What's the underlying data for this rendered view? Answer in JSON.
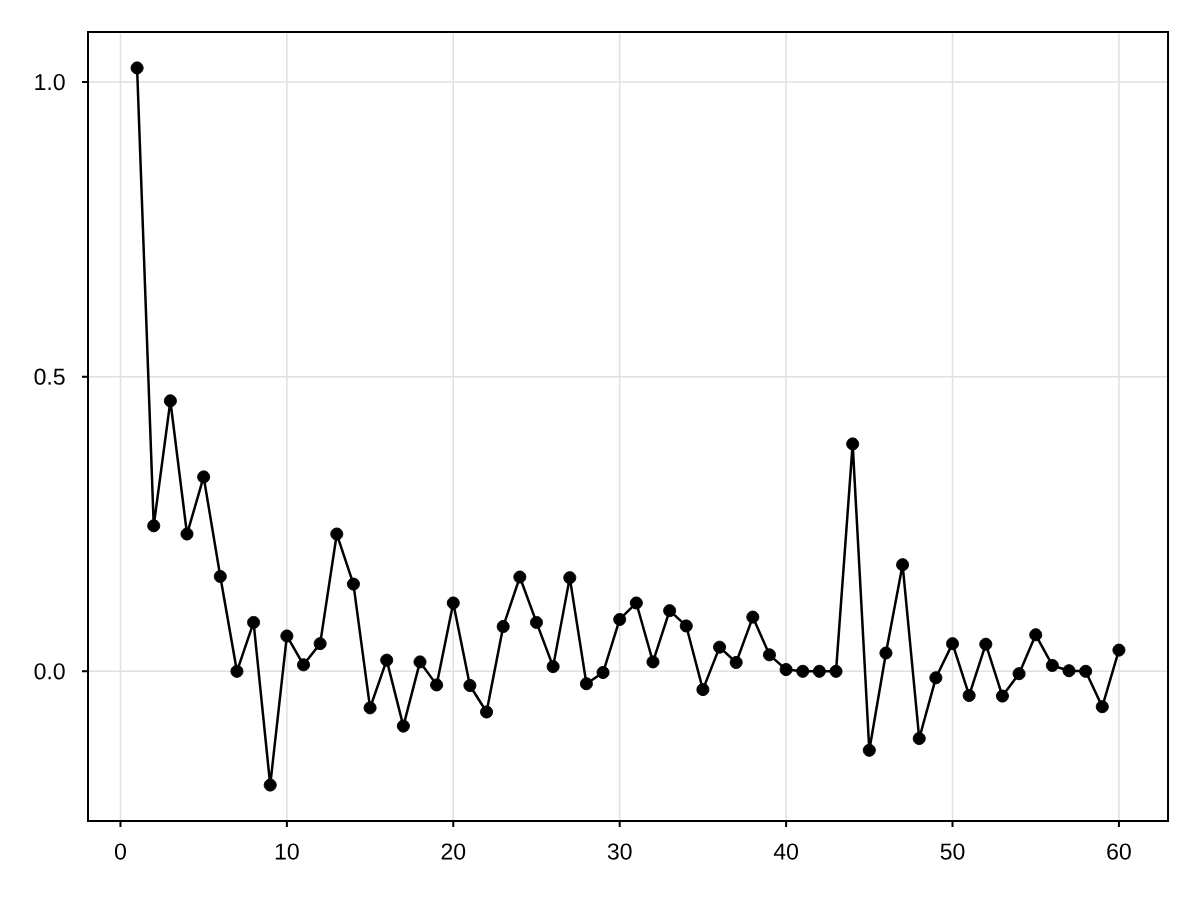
{
  "chart_data": {
    "type": "line",
    "color": "#000000",
    "marker": "circle",
    "line_style": "solid",
    "grid": true,
    "x": [
      1,
      2,
      3,
      4,
      5,
      6,
      7,
      8,
      9,
      10,
      11,
      12,
      13,
      14,
      15,
      16,
      17,
      18,
      19,
      20,
      21,
      22,
      23,
      24,
      25,
      26,
      27,
      28,
      29,
      30,
      31,
      32,
      33,
      34,
      35,
      36,
      37,
      38,
      39,
      40,
      41,
      42,
      43,
      44,
      45,
      46,
      47,
      48,
      49,
      50,
      51,
      52,
      53,
      54,
      55,
      56,
      57,
      58,
      59,
      60
    ],
    "values": [
      1.024,
      0.247,
      0.459,
      0.233,
      0.33,
      0.161,
      0.0,
      0.083,
      -0.193,
      0.06,
      0.011,
      0.047,
      0.233,
      0.148,
      -0.062,
      0.019,
      -0.093,
      0.016,
      -0.023,
      0.116,
      -0.024,
      -0.069,
      0.076,
      0.16,
      0.083,
      0.008,
      0.159,
      -0.021,
      -0.002,
      0.088,
      0.116,
      0.016,
      0.103,
      0.077,
      -0.031,
      0.041,
      0.015,
      0.092,
      0.028,
      0.003,
      0.0,
      0.0,
      0.0,
      0.386,
      -0.134,
      0.031,
      0.181,
      -0.114,
      -0.011,
      0.047,
      -0.041,
      0.046,
      -0.042,
      -0.004,
      0.062,
      0.01,
      0.001,
      0.0,
      -0.06,
      0.036
    ],
    "xlim": [
      -1.95,
      62.95
    ],
    "ylim": [
      -0.254,
      1.085
    ],
    "xticks": [
      0,
      10,
      20,
      30,
      40,
      50,
      60
    ],
    "yticks": [
      {
        "value": 0,
        "label": "0.0"
      },
      0.5,
      {
        "value": 1,
        "label": "1.0"
      }
    ]
  }
}
